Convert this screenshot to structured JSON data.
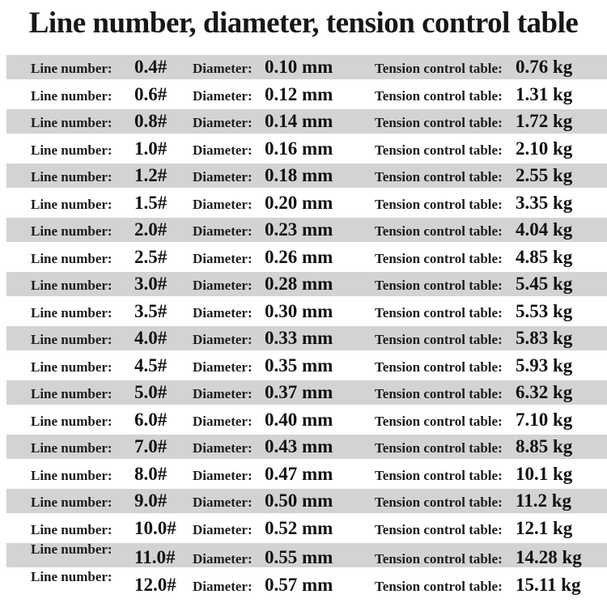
{
  "title": "Line number, diameter, tension control table",
  "labels": {
    "line": "Line number:",
    "diameter": "Diameter:",
    "tension": "Tension control table:"
  },
  "colors": {
    "stripe": "#d3d3d3",
    "background": "#ffffff",
    "text": "#1a1a1a"
  },
  "chart_data": {
    "type": "table",
    "title": "Line number, diameter, tension control table",
    "columns": [
      "Line number",
      "Diameter",
      "Tension control table"
    ],
    "rows": [
      [
        "0.4#",
        "0.10 mm",
        "0.76 kg"
      ],
      [
        "0.6#",
        "0.12 mm",
        "1.31 kg"
      ],
      [
        "0.8#",
        "0.14 mm",
        "1.72 kg"
      ],
      [
        "1.0#",
        "0.16 mm",
        "2.10 kg"
      ],
      [
        "1.2#",
        "0.18 mm",
        "2.55 kg"
      ],
      [
        "1.5#",
        "0.20 mm",
        "3.35 kg"
      ],
      [
        "2.0#",
        "0.23 mm",
        "4.04 kg"
      ],
      [
        "2.5#",
        "0.26 mm",
        "4.85 kg"
      ],
      [
        "3.0#",
        "0.28 mm",
        "5.45 kg"
      ],
      [
        "3.5#",
        "0.30 mm",
        "5.53 kg"
      ],
      [
        "4.0#",
        "0.33 mm",
        "5.83 kg"
      ],
      [
        "4.5#",
        "0.35 mm",
        "5.93 kg"
      ],
      [
        "5.0#",
        "0.37 mm",
        "6.32 kg"
      ],
      [
        "6.0#",
        "0.40 mm",
        "7.10 kg"
      ],
      [
        "7.0#",
        "0.43 mm",
        "8.85 kg"
      ],
      [
        "8.0#",
        "0.47 mm",
        "10.1 kg"
      ],
      [
        "9.0#",
        "0.50 mm",
        "11.2 kg"
      ],
      [
        "10.0#",
        "0.52 mm",
        "12.1 kg"
      ],
      [
        "11.0#",
        "0.55 mm",
        "14.28 kg"
      ],
      [
        "12.0#",
        "0.57 mm",
        "15.11 kg"
      ]
    ]
  }
}
